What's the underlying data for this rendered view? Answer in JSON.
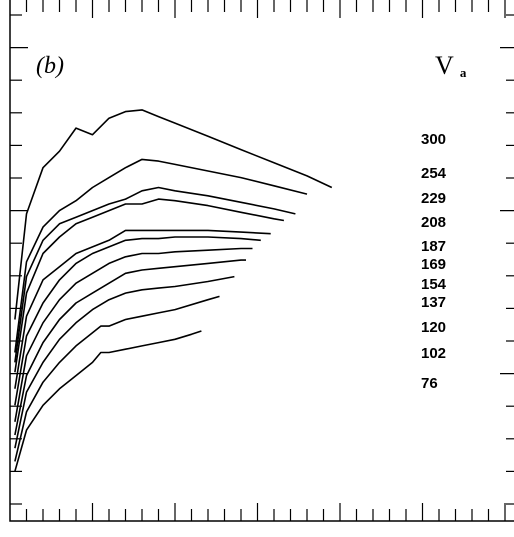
{
  "chart_data": {
    "type": "line",
    "panel_label": "(b)",
    "legend_title": {
      "main": "V",
      "sub": "a"
    },
    "x": [
      0,
      1,
      2,
      3,
      4,
      5,
      6,
      7,
      8,
      9,
      10,
      11,
      12,
      13,
      14,
      15,
      16,
      17,
      18,
      19,
      20,
      21,
      22
    ],
    "series": [
      {
        "name": "300",
        "points": [
          [
            0.3,
            6.1
          ],
          [
            1,
            9.3
          ],
          [
            2,
            10.7
          ],
          [
            3,
            11.2
          ],
          [
            4,
            11.9
          ],
          [
            5,
            11.7
          ],
          [
            6,
            12.2
          ],
          [
            7,
            12.4
          ],
          [
            8,
            12.45
          ],
          [
            9,
            12.25
          ],
          [
            10,
            12.05
          ],
          [
            12,
            11.65
          ],
          [
            14,
            11.25
          ],
          [
            16,
            10.85
          ],
          [
            18,
            10.45
          ],
          [
            19.5,
            10.1
          ]
        ]
      },
      {
        "name": "254",
        "points": [
          [
            0.3,
            5.1
          ],
          [
            1,
            7.85
          ],
          [
            2,
            8.9
          ],
          [
            3,
            9.4
          ],
          [
            4,
            9.7
          ],
          [
            5,
            10.1
          ],
          [
            6,
            10.4
          ],
          [
            7,
            10.7
          ],
          [
            8,
            10.95
          ],
          [
            9,
            10.9
          ],
          [
            10,
            10.8
          ],
          [
            12,
            10.6
          ],
          [
            14,
            10.4
          ],
          [
            16,
            10.15
          ],
          [
            18,
            9.9
          ]
        ]
      },
      {
        "name": "229",
        "points": [
          [
            0.3,
            4.8
          ],
          [
            1,
            7.4
          ],
          [
            2,
            8.5
          ],
          [
            3,
            9.0
          ],
          [
            4,
            9.2
          ],
          [
            5,
            9.4
          ],
          [
            6,
            9.6
          ],
          [
            7,
            9.75
          ],
          [
            8,
            10.0
          ],
          [
            9,
            10.1
          ],
          [
            10,
            10.0
          ],
          [
            12,
            9.85
          ],
          [
            14,
            9.65
          ],
          [
            16,
            9.45
          ],
          [
            17.3,
            9.3
          ]
        ]
      },
      {
        "name": "208",
        "points": [
          [
            0.3,
            4.5
          ],
          [
            1,
            6.9
          ],
          [
            2,
            8.1
          ],
          [
            3,
            8.6
          ],
          [
            4,
            9.0
          ],
          [
            5,
            9.2
          ],
          [
            6,
            9.4
          ],
          [
            7,
            9.6
          ],
          [
            8,
            9.6
          ],
          [
            9,
            9.75
          ],
          [
            10,
            9.7
          ],
          [
            12,
            9.55
          ],
          [
            14,
            9.35
          ],
          [
            16,
            9.15
          ],
          [
            16.6,
            9.1
          ]
        ]
      },
      {
        "name": "187",
        "points": [
          [
            0.3,
            4.0
          ],
          [
            1,
            6.2
          ],
          [
            2,
            7.3
          ],
          [
            3,
            7.7
          ],
          [
            4,
            8.1
          ],
          [
            5,
            8.3
          ],
          [
            6,
            8.5
          ],
          [
            7,
            8.8
          ],
          [
            8,
            8.8
          ],
          [
            9,
            8.8
          ],
          [
            10,
            8.8
          ],
          [
            12,
            8.8
          ],
          [
            14,
            8.75
          ],
          [
            15.8,
            8.7
          ]
        ]
      },
      {
        "name": "169",
        "points": [
          [
            0.3,
            3.5
          ],
          [
            1,
            5.6
          ],
          [
            2,
            6.6
          ],
          [
            3,
            7.3
          ],
          [
            4,
            7.8
          ],
          [
            5,
            8.1
          ],
          [
            6,
            8.3
          ],
          [
            7,
            8.5
          ],
          [
            8,
            8.55
          ],
          [
            9,
            8.55
          ],
          [
            10,
            8.6
          ],
          [
            12,
            8.6
          ],
          [
            14,
            8.55
          ],
          [
            15.2,
            8.5
          ]
        ]
      },
      {
        "name": "154",
        "points": [
          [
            0.3,
            3.0
          ],
          [
            1,
            5.0
          ],
          [
            2,
            6.0
          ],
          [
            3,
            6.7
          ],
          [
            4,
            7.2
          ],
          [
            5,
            7.5
          ],
          [
            6,
            7.8
          ],
          [
            7,
            8.0
          ],
          [
            8,
            8.1
          ],
          [
            9,
            8.1
          ],
          [
            10,
            8.15
          ],
          [
            12,
            8.2
          ],
          [
            14,
            8.25
          ],
          [
            14.7,
            8.25
          ]
        ]
      },
      {
        "name": "137",
        "points": [
          [
            0.3,
            2.6
          ],
          [
            1,
            4.4
          ],
          [
            2,
            5.4
          ],
          [
            3,
            6.1
          ],
          [
            4,
            6.6
          ],
          [
            5,
            6.9
          ],
          [
            6,
            7.2
          ],
          [
            7,
            7.5
          ],
          [
            8,
            7.6
          ],
          [
            9,
            7.65
          ],
          [
            10,
            7.7
          ],
          [
            12,
            7.8
          ],
          [
            14,
            7.9
          ],
          [
            14.3,
            7.9
          ]
        ]
      },
      {
        "name": "120",
        "points": [
          [
            0.3,
            2.2
          ],
          [
            1,
            3.9
          ],
          [
            2,
            4.8
          ],
          [
            3,
            5.5
          ],
          [
            4,
            6.0
          ],
          [
            5,
            6.4
          ],
          [
            6,
            6.7
          ],
          [
            7,
            6.9
          ],
          [
            8,
            7.0
          ],
          [
            9,
            7.05
          ],
          [
            10,
            7.1
          ],
          [
            12,
            7.25
          ],
          [
            13.6,
            7.4
          ]
        ]
      },
      {
        "name": "102",
        "points": [
          [
            0.3,
            1.8
          ],
          [
            1,
            3.3
          ],
          [
            2,
            4.2
          ],
          [
            3,
            4.8
          ],
          [
            4,
            5.3
          ],
          [
            5,
            5.7
          ],
          [
            5.5,
            5.9
          ],
          [
            6,
            5.9
          ],
          [
            7,
            6.1
          ],
          [
            8,
            6.2
          ],
          [
            9,
            6.3
          ],
          [
            10,
            6.4
          ],
          [
            12,
            6.7
          ],
          [
            12.7,
            6.8
          ]
        ]
      },
      {
        "name": "76",
        "points": [
          [
            0.3,
            1.5
          ],
          [
            1,
            2.75
          ],
          [
            2,
            3.5
          ],
          [
            3,
            4.0
          ],
          [
            4,
            4.4
          ],
          [
            5,
            4.8
          ],
          [
            5.5,
            5.1
          ],
          [
            6,
            5.1
          ],
          [
            7,
            5.2
          ],
          [
            8,
            5.3
          ],
          [
            9,
            5.4
          ],
          [
            10,
            5.5
          ],
          [
            11,
            5.65
          ],
          [
            11.6,
            5.75
          ]
        ]
      }
    ],
    "xlim": [
      0,
      24
    ],
    "ylim": [
      0.6,
      14.5
    ],
    "grid": false,
    "axis_tick_labels": "none",
    "ticks": "inward, all four sides, minor every 1 unit, major every 5 units",
    "colors": {
      "line": "#000000",
      "background": "#ffffff"
    }
  }
}
